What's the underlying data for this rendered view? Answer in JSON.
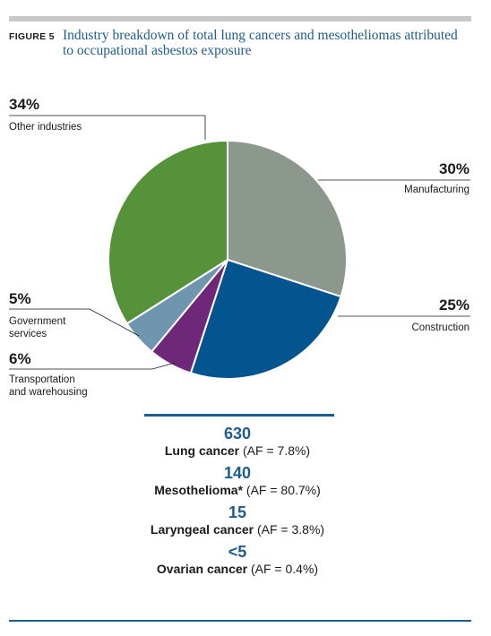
{
  "figure": {
    "label": "FIGURE 5",
    "title": "Industry breakdown of total lung cancers and mesotheliomas attributed to occupational asbestos exposure"
  },
  "chart_data": {
    "type": "pie",
    "title": "Industry breakdown of total lung cancers and mesotheliomas attributed to occupational asbestos exposure",
    "slices": [
      {
        "label": "Manufacturing",
        "value": 30,
        "pct_label": "30%",
        "color": "#8c978d"
      },
      {
        "label": "Construction",
        "value": 25,
        "pct_label": "25%",
        "color": "#04548f"
      },
      {
        "label": "Transportation and warehousing",
        "value": 6,
        "pct_label": "6%",
        "color": "#6e2779"
      },
      {
        "label": "Government services",
        "value": 5,
        "pct_label": "5%",
        "color": "#7095af"
      },
      {
        "label": "Other industries",
        "value": 34,
        "pct_label": "34%",
        "color": "#55923a"
      }
    ]
  },
  "stats": [
    {
      "value": "630",
      "name": "Lung cancer",
      "af": "(AF = 7.8%)"
    },
    {
      "value": "140",
      "name": "Mesothelioma*",
      "af": "(AF = 80.7%)"
    },
    {
      "value": "15",
      "name": "Laryngeal cancer",
      "af": "(AF = 3.8%)"
    },
    {
      "value": "<5",
      "name": "Ovarian cancer",
      "af": "(AF = 0.4%)"
    }
  ],
  "colors": {
    "accent": "#1e5c8e",
    "rule": "#c8c8c8"
  }
}
